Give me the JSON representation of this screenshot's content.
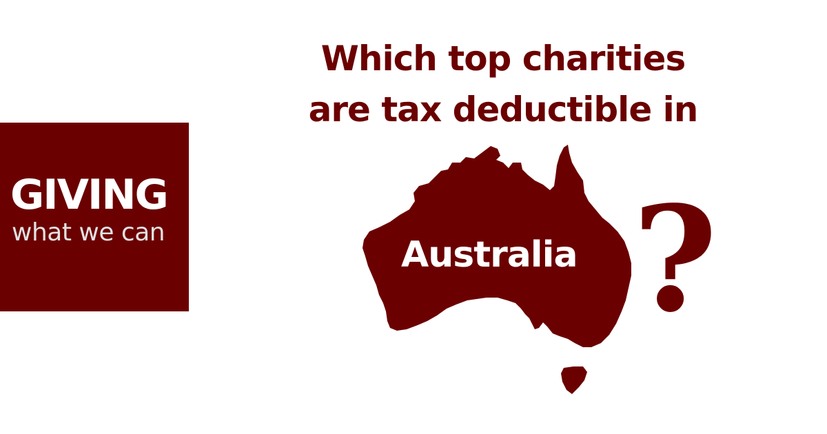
{
  "logo": {
    "main": "GIVING",
    "sub": "what we can"
  },
  "headline": {
    "line1": "Which top charities",
    "line2": "are tax deductible in"
  },
  "map": {
    "label": "Australia",
    "icon": "australia-map-icon"
  },
  "question_mark": "?",
  "colors": {
    "brand": "#6b0000",
    "background": "#ffffff",
    "logo_sub_text": "#e2e2e2"
  }
}
